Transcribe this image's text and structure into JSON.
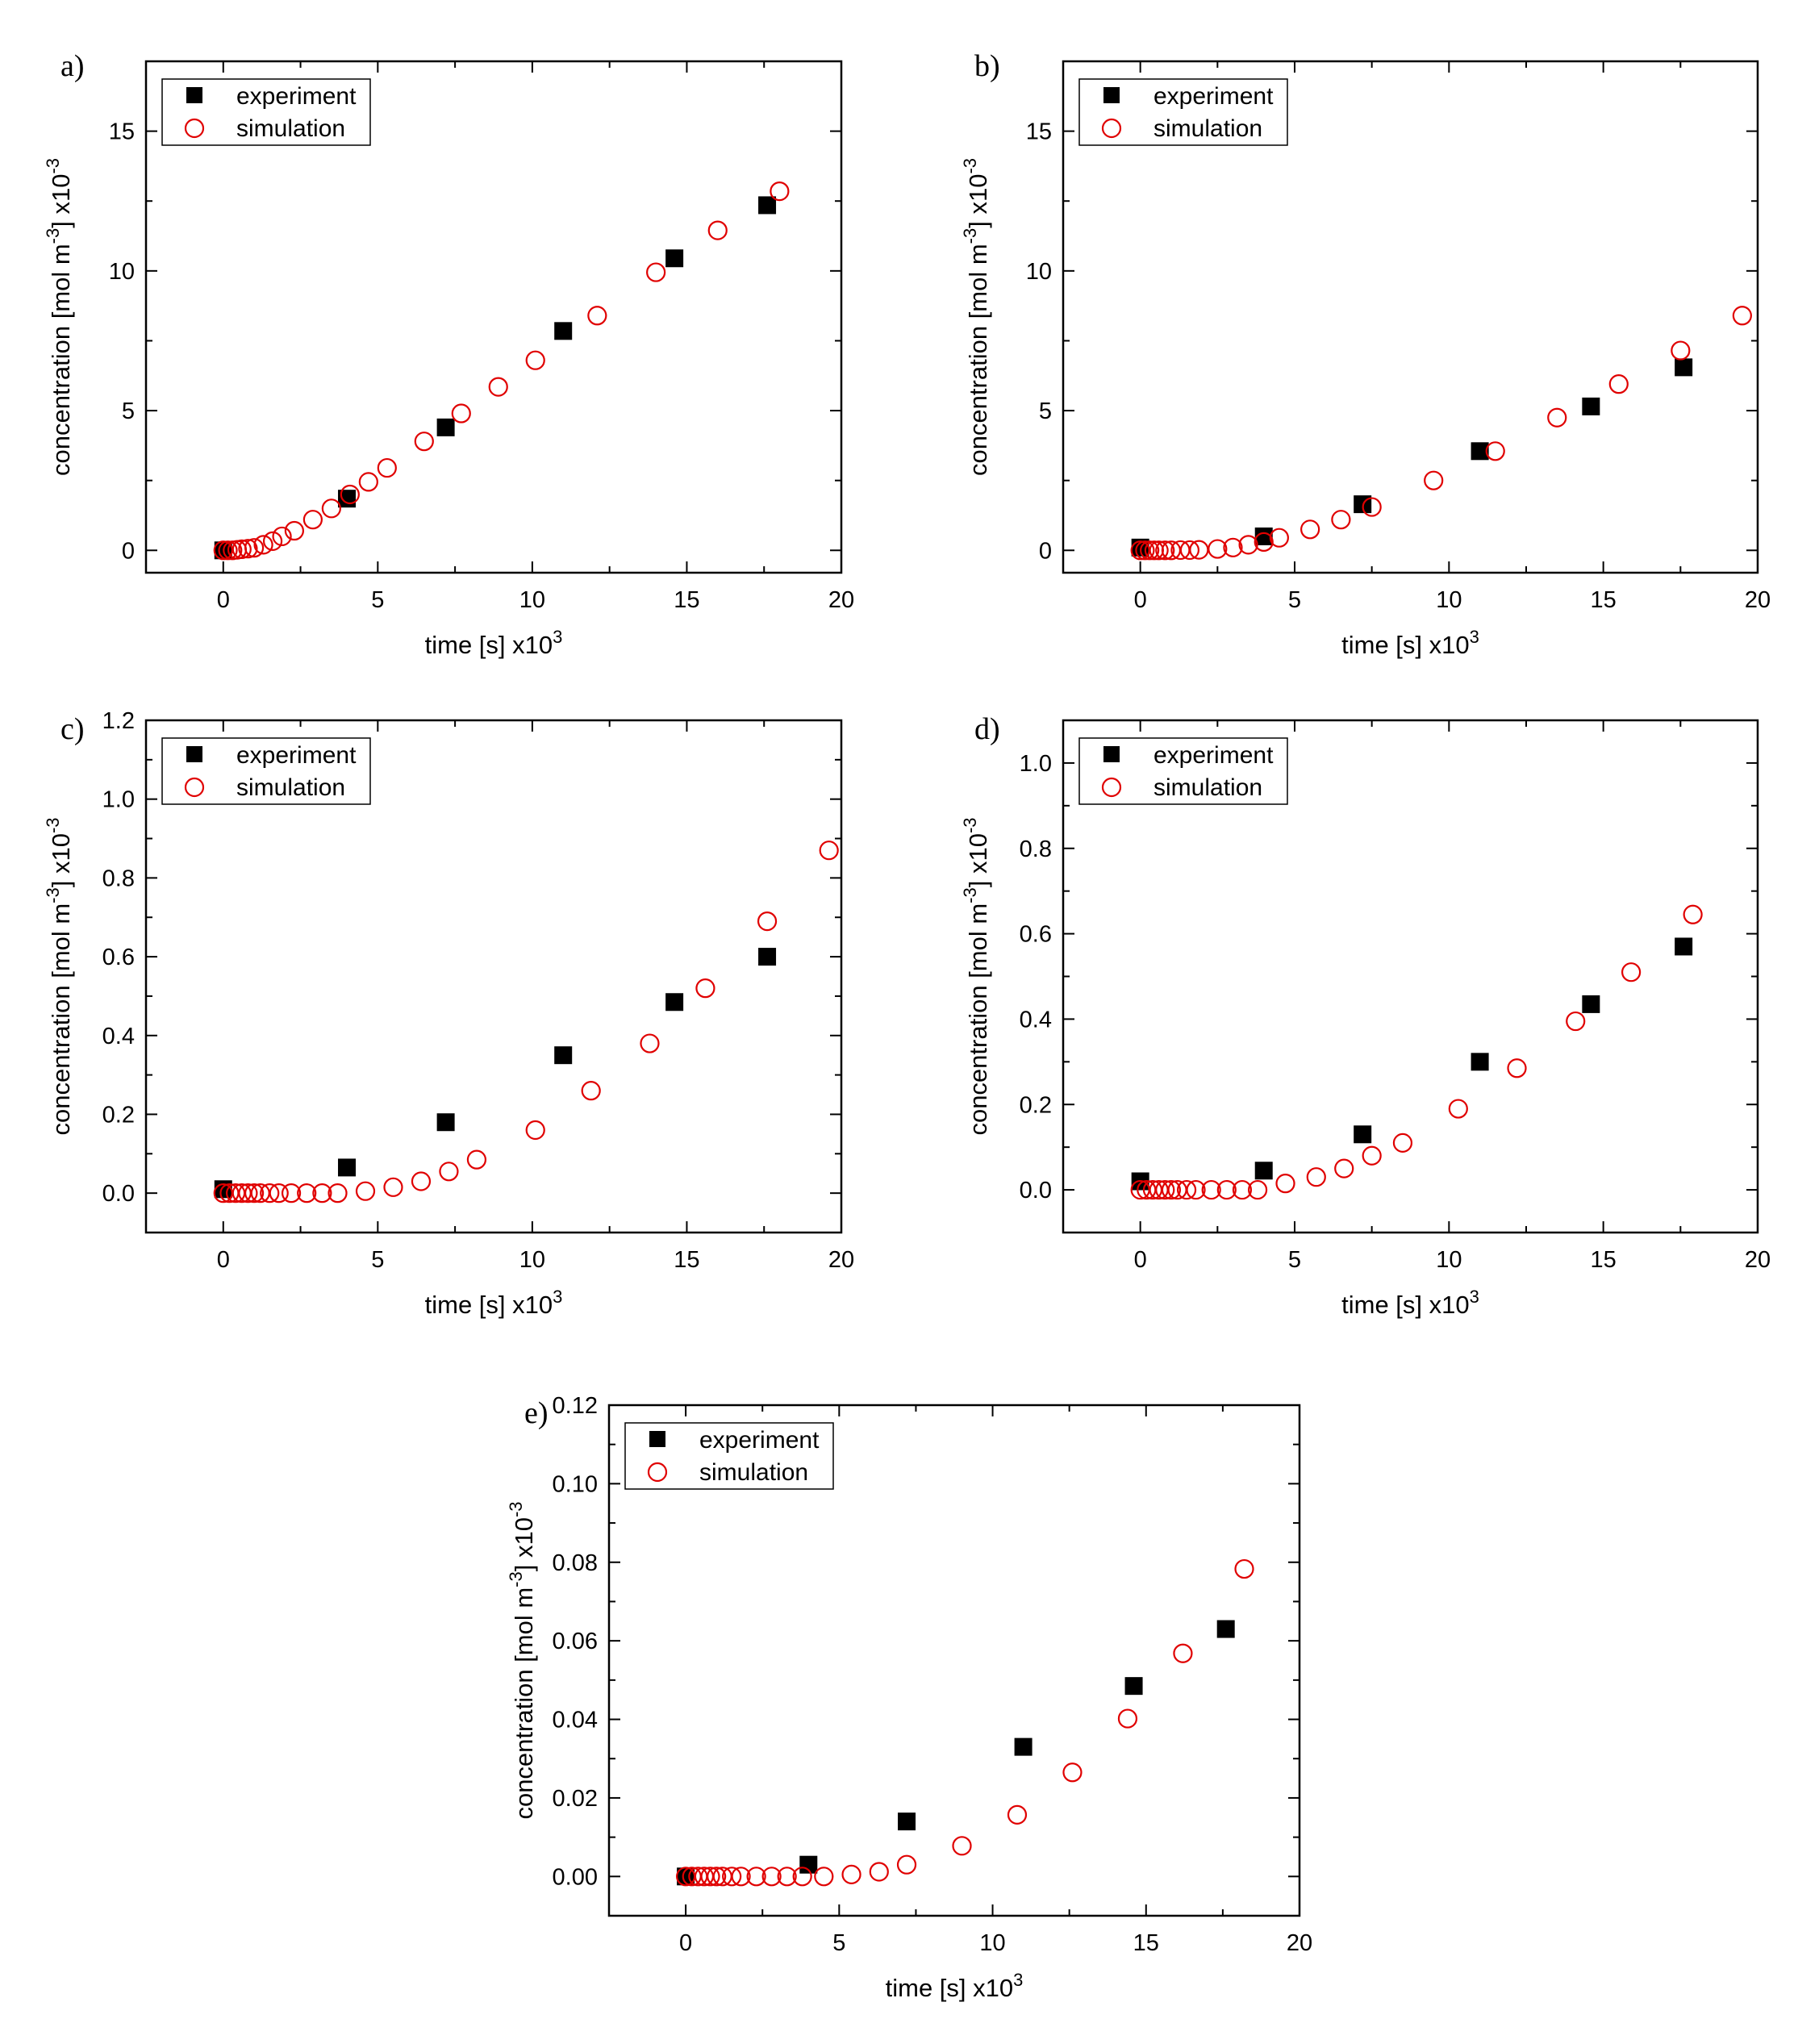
{
  "chart_data": [
    {
      "type": "scatter",
      "panel_label": "a)",
      "xlabel": "time [s] x10",
      "xlabel_exp": "3",
      "ylabel_parts": [
        "concentration [mol m",
        "-3",
        "] x10",
        "-3"
      ],
      "xlim": [
        -2.5,
        20
      ],
      "ylim": [
        -0.8,
        17.5
      ],
      "xticks": [
        "0",
        "5",
        "10",
        "15",
        "20"
      ],
      "yticks": [
        "0",
        "5",
        "10",
        "15"
      ],
      "xtick_values": [
        0,
        5,
        10,
        15,
        20
      ],
      "ytick_values": [
        0,
        5,
        10,
        15
      ],
      "legend": [
        "experiment",
        "simulation"
      ],
      "series": [
        {
          "name": "experiment",
          "x": [
            0.0,
            4.0,
            7.2,
            11.0,
            14.6,
            17.6
          ],
          "y": [
            0.0,
            1.85,
            4.4,
            7.85,
            10.45,
            12.35
          ]
        },
        {
          "name": "simulation",
          "x": [
            0.0,
            0.15,
            0.3,
            0.45,
            0.6,
            0.8,
            1.0,
            1.3,
            1.6,
            1.9,
            2.3,
            2.9,
            3.5,
            4.1,
            4.7,
            5.3,
            6.5,
            7.7,
            8.9,
            10.1,
            12.1,
            14.0,
            16.0,
            18.0
          ],
          "y": [
            0.0,
            0.0,
            0.0,
            0.02,
            0.04,
            0.06,
            0.09,
            0.2,
            0.33,
            0.5,
            0.7,
            1.1,
            1.5,
            2.0,
            2.45,
            2.95,
            3.9,
            4.9,
            5.85,
            6.8,
            8.4,
            9.95,
            11.45,
            12.85
          ]
        }
      ]
    },
    {
      "type": "scatter",
      "panel_label": "b)",
      "xlabel": "time [s] x10",
      "xlabel_exp": "3",
      "ylabel_parts": [
        "concentration [mol m",
        "-3",
        "] x10",
        "-3"
      ],
      "xlim": [
        -2.5,
        20
      ],
      "ylim": [
        -0.8,
        17.5
      ],
      "xticks": [
        "0",
        "5",
        "10",
        "15",
        "20"
      ],
      "yticks": [
        "0",
        "5",
        "10",
        "15"
      ],
      "xtick_values": [
        0,
        5,
        10,
        15,
        20
      ],
      "ytick_values": [
        0,
        5,
        10,
        15
      ],
      "legend": [
        "experiment",
        "simulation"
      ],
      "series": [
        {
          "name": "experiment",
          "x": [
            0.0,
            4.0,
            7.2,
            11.0,
            14.6,
            17.6
          ],
          "y": [
            0.1,
            0.5,
            1.65,
            3.55,
            5.15,
            6.55
          ]
        },
        {
          "name": "simulation",
          "x": [
            0.0,
            0.15,
            0.3,
            0.45,
            0.6,
            0.8,
            1.0,
            1.3,
            1.6,
            1.9,
            2.5,
            3.0,
            3.5,
            4.0,
            4.5,
            5.5,
            6.5,
            7.5,
            9.5,
            11.5,
            13.5,
            15.5,
            17.5,
            19.5
          ],
          "y": [
            0.0,
            0.0,
            0.0,
            0.0,
            0.0,
            0.0,
            0.0,
            0.01,
            0.01,
            0.02,
            0.05,
            0.1,
            0.2,
            0.3,
            0.45,
            0.75,
            1.1,
            1.55,
            2.5,
            3.55,
            4.75,
            5.95,
            7.15,
            8.4
          ]
        }
      ]
    },
    {
      "type": "scatter",
      "panel_label": "c)",
      "xlabel": "time [s] x10",
      "xlabel_exp": "3",
      "ylabel_parts": [
        "concentration [mol m",
        "-3",
        "] x10",
        "-3"
      ],
      "xlim": [
        -2.5,
        20
      ],
      "ylim": [
        -0.1,
        1.2
      ],
      "xticks": [
        "0",
        "5",
        "10",
        "15",
        "20"
      ],
      "yticks": [
        "0.0",
        "0.2",
        "0.4",
        "0.6",
        "0.8",
        "1.0",
        "1.2"
      ],
      "xtick_values": [
        0,
        5,
        10,
        15,
        20
      ],
      "ytick_values": [
        0,
        0.2,
        0.4,
        0.6,
        0.8,
        1.0,
        1.2
      ],
      "legend": [
        "experiment",
        "simulation"
      ],
      "series": [
        {
          "name": "experiment",
          "x": [
            0.0,
            4.0,
            7.2,
            11.0,
            14.6,
            17.6
          ],
          "y": [
            0.01,
            0.065,
            0.18,
            0.35,
            0.485,
            0.6
          ]
        },
        {
          "name": "simulation",
          "x": [
            0.0,
            0.2,
            0.4,
            0.6,
            0.8,
            1.0,
            1.2,
            1.5,
            1.8,
            2.2,
            2.7,
            3.2,
            3.7,
            4.6,
            5.5,
            6.4,
            7.3,
            8.2,
            10.1,
            11.9,
            13.8,
            15.6,
            17.6,
            19.6
          ],
          "y": [
            0.0,
            0.0,
            0.0,
            0.0,
            0.0,
            0.0,
            0.0,
            0.0,
            0.0,
            0.0,
            0.0,
            0.0,
            0.0,
            0.005,
            0.015,
            0.03,
            0.055,
            0.085,
            0.16,
            0.26,
            0.38,
            0.52,
            0.69,
            0.87
          ]
        }
      ]
    },
    {
      "type": "scatter",
      "panel_label": "d)",
      "xlabel": "time [s] x10",
      "xlabel_exp": "3",
      "ylabel_parts": [
        "concentration [mol m",
        "-3",
        "] x10",
        "-3"
      ],
      "xlim": [
        -2.5,
        20
      ],
      "ylim": [
        -0.1,
        1.1
      ],
      "xticks": [
        "0",
        "5",
        "10",
        "15",
        "20"
      ],
      "yticks": [
        "0.0",
        "0.2",
        "0.4",
        "0.6",
        "0.8",
        "1.0"
      ],
      "xtick_values": [
        0,
        5,
        10,
        15,
        20
      ],
      "ytick_values": [
        0,
        0.2,
        0.4,
        0.6,
        0.8,
        1.0
      ],
      "legend": [
        "experiment",
        "simulation"
      ],
      "series": [
        {
          "name": "experiment",
          "x": [
            0.0,
            4.0,
            7.2,
            11.0,
            14.6,
            17.6
          ],
          "y": [
            0.02,
            0.045,
            0.13,
            0.3,
            0.435,
            0.57
          ]
        },
        {
          "name": "simulation",
          "x": [
            0.0,
            0.2,
            0.4,
            0.6,
            0.8,
            1.0,
            1.2,
            1.5,
            1.8,
            2.3,
            2.8,
            3.3,
            3.8,
            4.7,
            5.7,
            6.6,
            7.5,
            8.5,
            10.3,
            12.2,
            14.1,
            15.9,
            17.9
          ],
          "y": [
            0.0,
            0.0,
            0.0,
            0.0,
            0.0,
            0.0,
            0.0,
            0.0,
            0.0,
            0.0,
            0.0,
            0.0,
            0.0,
            0.015,
            0.03,
            0.05,
            0.08,
            0.11,
            0.19,
            0.285,
            0.395,
            0.51,
            0.645
          ]
        }
      ]
    },
    {
      "type": "scatter",
      "panel_label": "e)",
      "xlabel": "time [s] x10",
      "xlabel_exp": "3",
      "ylabel_parts": [
        "concentration [mol m",
        "-3",
        "] x10",
        "-3"
      ],
      "xlim": [
        -2.5,
        20
      ],
      "ylim": [
        -0.01,
        0.12
      ],
      "xticks": [
        "0",
        "5",
        "10",
        "15",
        "20"
      ],
      "yticks": [
        "0.00",
        "0.02",
        "0.04",
        "0.06",
        "0.08",
        "0.10",
        "0.12"
      ],
      "xtick_values": [
        0,
        5,
        10,
        15,
        20
      ],
      "ytick_values": [
        0,
        0.02,
        0.04,
        0.06,
        0.08,
        0.1,
        0.12
      ],
      "legend": [
        "experiment",
        "simulation"
      ],
      "series": [
        {
          "name": "experiment",
          "x": [
            0.0,
            4.0,
            7.2,
            11.0,
            14.6,
            17.6
          ],
          "y": [
            0.0,
            0.003,
            0.014,
            0.033,
            0.0485,
            0.063
          ]
        },
        {
          "name": "simulation",
          "x": [
            0.0,
            0.2,
            0.4,
            0.6,
            0.8,
            1.0,
            1.2,
            1.5,
            1.8,
            2.3,
            2.8,
            3.3,
            3.8,
            4.5,
            5.4,
            6.3,
            7.2,
            9.0,
            10.8,
            12.6,
            14.4,
            16.2,
            18.2
          ],
          "y": [
            0.0,
            0.0,
            0.0,
            0.0,
            0.0,
            0.0,
            0.0,
            0.0,
            0.0,
            0.0,
            0.0,
            0.0,
            0.0,
            0.0,
            0.0005,
            0.0012,
            0.003,
            0.0078,
            0.0157,
            0.0265,
            0.0402,
            0.0568,
            0.0783
          ]
        }
      ]
    }
  ]
}
